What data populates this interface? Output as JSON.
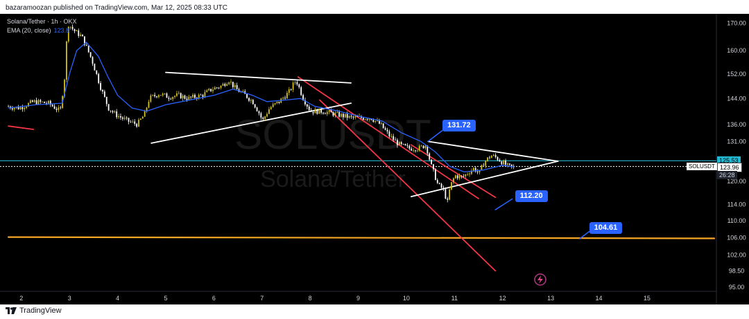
{
  "header": {
    "publisher": "bazaramoozan published on TradingView.com, Mar 12, 2025 08:33 UTC"
  },
  "legend": {
    "title": "Solana/Tether · 1h · OKX",
    "ema_label": "EMA (20, close)",
    "ema_value": "123.8"
  },
  "watermark": {
    "symbol": "SOLUSDT",
    "name": "Solana/Tether"
  },
  "callouts": [
    {
      "label": "131.72",
      "value": 131.72
    },
    {
      "label": "112.20",
      "value": 112.2
    },
    {
      "label": "104.61",
      "value": 104.61
    }
  ],
  "price_tags": {
    "ema_price": "125.53",
    "last_price": "123.96",
    "countdown": "26:28",
    "symbol": "SOLUSDT"
  },
  "footer": {
    "brand": "TradingView"
  },
  "colors": {
    "up": "#d4c31f",
    "down": "#ffffff",
    "ema": "#2962ff",
    "channel": "#f23645",
    "support": "#f5a623",
    "level": "#22b8cf",
    "triangle": "#ffffff",
    "callout": "#2962ff"
  },
  "chart_data": {
    "type": "candlestick",
    "x_ticks": [
      "2",
      "3",
      "4",
      "5",
      "6",
      "7",
      "8",
      "9",
      "10",
      "11",
      "12",
      "13",
      "14",
      "15"
    ],
    "y_ticks": [
      170.0,
      160.0,
      152.0,
      144.0,
      136.0,
      131.0,
      125.53,
      123.96,
      120.0,
      114.0,
      110.0,
      106.0,
      102.0,
      98.5,
      95.0
    ],
    "y_tick_labels": [
      "170.00",
      "160.00",
      "152.00",
      "144.00",
      "136.00",
      "131.00",
      "125.53",
      "123.96",
      "120.00",
      "114.00",
      "110.00",
      "106.00",
      "102.00",
      "98.50",
      "95.00"
    ],
    "x_range": [
      1.7,
      16.4
    ],
    "y_range": [
      94.3,
      173.5
    ],
    "y_scale": "log",
    "price_path": [
      [
        1.73,
        141.5
      ],
      [
        2.0,
        141
      ],
      [
        2.3,
        143
      ],
      [
        2.6,
        142.5
      ],
      [
        2.85,
        140
      ],
      [
        2.95,
        152
      ],
      [
        3.0,
        170
      ],
      [
        3.15,
        167
      ],
      [
        3.3,
        165
      ],
      [
        3.5,
        157
      ],
      [
        3.7,
        147
      ],
      [
        3.85,
        141
      ],
      [
        4.0,
        139
      ],
      [
        4.25,
        137
      ],
      [
        4.45,
        136
      ],
      [
        4.6,
        139
      ],
      [
        4.7,
        144
      ],
      [
        4.9,
        145.5
      ],
      [
        5.1,
        144.5
      ],
      [
        5.3,
        145
      ],
      [
        5.5,
        144
      ],
      [
        5.8,
        145
      ],
      [
        6.0,
        147
      ],
      [
        6.2,
        148
      ],
      [
        6.35,
        150
      ],
      [
        6.5,
        147
      ],
      [
        6.7,
        145
      ],
      [
        6.85,
        143
      ],
      [
        7.0,
        139
      ],
      [
        7.05,
        137
      ],
      [
        7.2,
        141
      ],
      [
        7.4,
        143
      ],
      [
        7.6,
        146
      ],
      [
        7.75,
        150
      ],
      [
        7.9,
        144
      ],
      [
        8.05,
        140
      ],
      [
        8.3,
        140
      ],
      [
        8.6,
        139
      ],
      [
        8.9,
        138
      ],
      [
        9.3,
        138
      ],
      [
        9.5,
        136
      ],
      [
        9.7,
        132.5
      ],
      [
        9.9,
        130
      ],
      [
        10.1,
        129
      ],
      [
        10.3,
        129
      ],
      [
        10.45,
        130
      ],
      [
        10.55,
        124.5
      ],
      [
        10.7,
        119
      ],
      [
        10.8,
        118
      ],
      [
        10.9,
        114.5
      ],
      [
        10.95,
        118.5
      ],
      [
        11.05,
        121.5
      ],
      [
        11.2,
        121
      ],
      [
        11.45,
        123.5
      ],
      [
        11.55,
        122
      ],
      [
        11.65,
        125
      ],
      [
        11.8,
        127
      ],
      [
        11.9,
        126.5
      ],
      [
        12.05,
        125
      ],
      [
        12.15,
        124
      ],
      [
        12.25,
        123.7
      ]
    ],
    "ema_path": [
      [
        1.73,
        141
      ],
      [
        2.3,
        142
      ],
      [
        2.85,
        142.5
      ],
      [
        3.0,
        152
      ],
      [
        3.15,
        160
      ],
      [
        3.35,
        163
      ],
      [
        3.6,
        158
      ],
      [
        3.8,
        151
      ],
      [
        4.0,
        145
      ],
      [
        4.3,
        141
      ],
      [
        4.6,
        140
      ],
      [
        5.0,
        142
      ],
      [
        5.5,
        143.5
      ],
      [
        6.0,
        145
      ],
      [
        6.4,
        147
      ],
      [
        6.8,
        145
      ],
      [
        7.1,
        143
      ],
      [
        7.5,
        143.5
      ],
      [
        7.8,
        144
      ],
      [
        8.1,
        141.5
      ],
      [
        8.6,
        140
      ],
      [
        9.0,
        138.5
      ],
      [
        9.5,
        137
      ],
      [
        9.9,
        133.5
      ],
      [
        10.3,
        131
      ],
      [
        10.6,
        128
      ],
      [
        10.9,
        124
      ],
      [
        11.2,
        122.5
      ],
      [
        11.6,
        123
      ],
      [
        12.0,
        124.3
      ],
      [
        12.25,
        123.8
      ]
    ],
    "drawings": {
      "triangle_top_left": [
        [
          5.0,
          152.5
        ],
        [
          8.85,
          149.0
        ]
      ],
      "triangle_bottom_left": [
        [
          4.7,
          130.5
        ],
        [
          8.85,
          142.5
        ]
      ],
      "triangle_top_right": [
        [
          10.45,
          131.0
        ],
        [
          13.15,
          125.4
        ]
      ],
      "triangle_bottom_right": [
        [
          10.1,
          116.0
        ],
        [
          13.15,
          125.4
        ]
      ],
      "channel_top": [
        [
          7.75,
          151.0
        ],
        [
          11.5,
          115.5
        ]
      ],
      "channel_middle": [
        [
          10.1,
          130.0
        ],
        [
          11.85,
          115.8
        ]
      ],
      "channel_bottom": [
        [
          8.2,
          143.5
        ],
        [
          11.85,
          98.5
        ]
      ],
      "channel_stub": [
        [
          1.73,
          135.5
        ],
        [
          2.25,
          134.5
        ]
      ],
      "support_line": [
        [
          1.73,
          106.1
        ],
        [
          16.4,
          105.8
        ]
      ],
      "level_line": 125.53,
      "last_price_line": 123.96,
      "pointer_131": [
        [
          10.45,
          131.0
        ],
        [
          10.75,
          134.2
        ]
      ],
      "pointer_112": [
        [
          11.85,
          112.7
        ],
        [
          12.2,
          115.4
        ]
      ],
      "pointer_104": [
        [
          13.6,
          105.7
        ],
        [
          13.8,
          107.4
        ]
      ]
    }
  }
}
